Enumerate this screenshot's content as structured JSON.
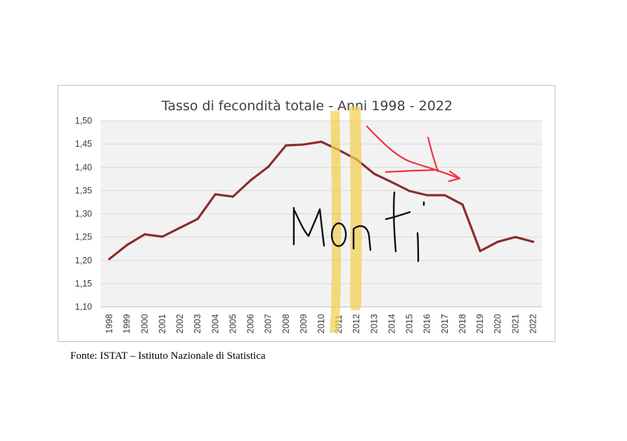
{
  "source_note": "Fonte: ISTAT – Istituto Nazionale di Statistica",
  "annotations": {
    "handwritten_label": "Monti",
    "highlight_color": "#f2cf4a",
    "arrow_color": "#ee3140",
    "highlighted_years": [
      "2011",
      "2012"
    ]
  },
  "chart_data": {
    "type": "line",
    "title": "Tasso di fecondità totale - Anni 1998 - 2022",
    "xlabel": "",
    "ylabel": "",
    "ylim": [
      1.1,
      1.5
    ],
    "y_ticks": [
      "1,10",
      "1,15",
      "1,20",
      "1,25",
      "1,30",
      "1,35",
      "1,40",
      "1,45",
      "1,50"
    ],
    "grid": true,
    "line_color": "#8b2c2c",
    "plot_background": "#f2f2f2",
    "categories": [
      "1998",
      "1999",
      "2000",
      "2001",
      "2002",
      "2003",
      "2004",
      "2005",
      "2006",
      "2007",
      "2008",
      "2009",
      "2010",
      "2011",
      "2012",
      "2013",
      "2014",
      "2015",
      "2016",
      "2017",
      "2018",
      "2019",
      "2020",
      "2021",
      "2022"
    ],
    "series": [
      {
        "values": [
          1.203,
          1.233,
          1.256,
          1.251,
          1.27,
          1.289,
          1.342,
          1.337,
          1.372,
          1.401,
          1.447,
          1.449,
          1.455,
          1.437,
          1.417,
          1.386,
          1.368,
          1.349,
          1.34,
          1.34,
          1.32,
          1.22,
          1.24,
          1.25,
          1.24
        ]
      }
    ]
  }
}
